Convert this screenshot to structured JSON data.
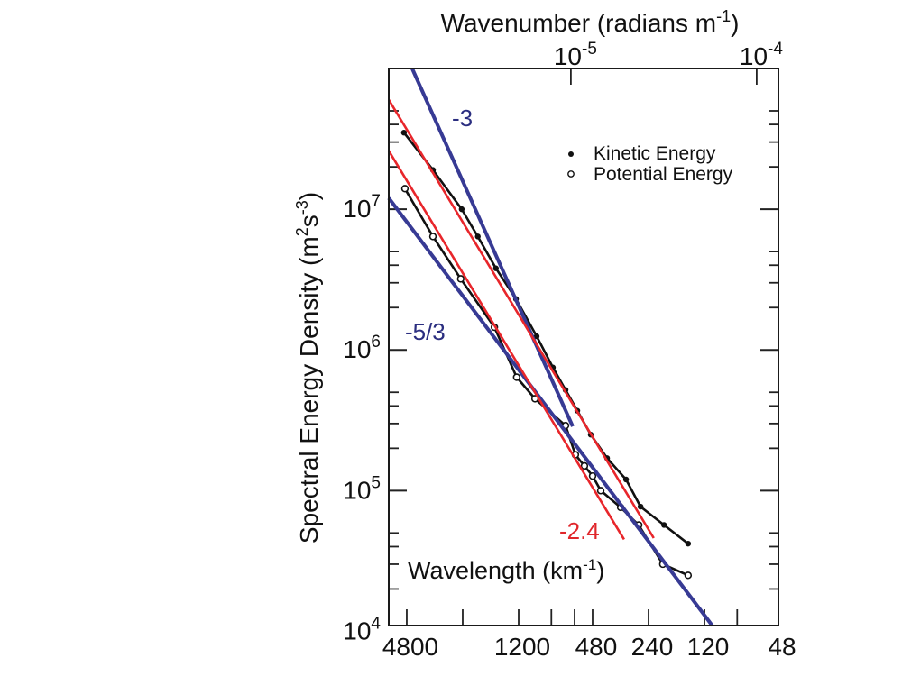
{
  "chart_data": {
    "type": "line",
    "title": "",
    "xscale": "log",
    "yscale": "log",
    "grid": false,
    "xlabel": {
      "parts": [
        {
          "t": "Wavelength (km"
        },
        {
          "t": "-1",
          "sup": true
        },
        {
          "t": ")"
        }
      ]
    },
    "ylabel": {
      "parts": [
        {
          "t": "Spectral Energy Density   (m"
        },
        {
          "t": "2",
          "sup": true
        },
        {
          "t": "s"
        },
        {
          "t": "-3",
          "sup": true
        },
        {
          "t": ")"
        }
      ]
    },
    "top_xlabel": {
      "parts": [
        {
          "t": "Wavenumber (radians m"
        },
        {
          "t": "-1",
          "sup": true
        },
        {
          "t": ")"
        }
      ]
    },
    "xlim": [
      6000,
      48
    ],
    "ylim": [
      11000,
      100000000
    ],
    "x_ticks": [
      4800,
      2400,
      1200,
      800,
      600,
      480,
      240,
      120,
      80
    ],
    "x_tick_labels": [
      {
        "value": 4800,
        "label": "4800"
      },
      {
        "value": 1200,
        "label": "1200"
      },
      {
        "value": 480,
        "label": "480"
      },
      {
        "value": 240,
        "label": "240"
      },
      {
        "value": 120,
        "label": "120"
      },
      {
        "value": 48,
        "label": "48"
      }
    ],
    "y_tick_labels": [
      {
        "value": 10000,
        "base": "10",
        "exp": "4"
      },
      {
        "value": 100000,
        "base": "10",
        "exp": "5"
      },
      {
        "value": 1000000,
        "base": "10",
        "exp": "6"
      },
      {
        "value": 10000000,
        "base": "10",
        "exp": "7"
      }
    ],
    "y_major_ticks": [
      100000,
      1000000,
      10000000
    ],
    "y_minor_multipliers": [
      2,
      3,
      4,
      5
    ],
    "top_ticks": [
      {
        "value": 1e-05,
        "base": "10",
        "exp": "-5"
      },
      {
        "value": 0.0001,
        "base": "10",
        "exp": "-4"
      }
    ],
    "series": [
      {
        "name": "Kinetic Energy",
        "marker": "filled-circle",
        "color": "#111111",
        "x": [
          4970,
          3470,
          2430,
          1990,
          1590,
          1240,
          960,
          785,
          671,
          580,
          491,
          401,
          317,
          265,
          198,
          147
        ],
        "y": [
          35000000,
          19000000,
          10000000,
          6400000,
          3800000,
          2300000,
          1250000,
          750000,
          520000,
          370000,
          250000,
          170000,
          120000,
          77000,
          57000,
          42000
        ]
      },
      {
        "name": "Potential Energy",
        "marker": "open-circle",
        "color": "#111111",
        "x": [
          4910,
          3470,
          2460,
          1620,
          1230,
          980,
          671,
          594,
          531,
          480,
          434,
          339,
          271,
          201,
          147
        ],
        "y": [
          14000000,
          6400000,
          3200000,
          1450000,
          640000,
          450000,
          290000,
          180000,
          150000,
          127000,
          100000,
          76000,
          57000,
          30000,
          25000
        ]
      }
    ],
    "reference_lines": [
      {
        "name": "slope-minus-3",
        "label": "-3",
        "color": "#373a94",
        "from": [
          4490,
          100000000
        ],
        "to": [
          614,
          286000
        ]
      },
      {
        "name": "slope-minus-5-3",
        "label": "-5/3",
        "color": "#373a94",
        "from": [
          6000,
          12000000
        ],
        "to": [
          109,
          11000
        ]
      },
      {
        "name": "slope-minus-2-4-upper",
        "label": "-2.4",
        "color": "#e8262b",
        "from": [
          6000,
          60000000
        ],
        "to": [
          225,
          46000
        ]
      },
      {
        "name": "slope-minus-2-4-lower",
        "label": "-2.4",
        "color": "#e8262b",
        "from": [
          6000,
          26000000
        ],
        "to": [
          325,
          45000
        ]
      }
    ],
    "annotations": [
      {
        "text": "-3",
        "color": "#2b2e80",
        "x": 2745,
        "y": 39000000
      },
      {
        "text": "-5/3",
        "color": "#2b2e80",
        "x": 4908,
        "y": 1180000
      },
      {
        "text": "-2.4",
        "color": "#e0262b",
        "x": 726,
        "y": 45300
      }
    ],
    "legend": {
      "placement": "top-right",
      "entries": [
        {
          "label": "Kinetic Energy",
          "marker": "filled-circle"
        },
        {
          "label": "Potential Energy",
          "marker": "open-circle"
        }
      ]
    }
  }
}
